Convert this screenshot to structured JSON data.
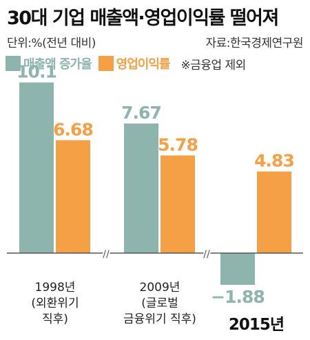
{
  "title": "30대 기업 매출액·영업이익률 떨어져",
  "unit": "단위:%(전년 대비)",
  "source": "자료:한국경제연구원",
  "note": "※금융업 제외",
  "colors": {
    "sales": "#8db5ae",
    "margin": "#f5a044",
    "axis": "#555555"
  },
  "chart_data": {
    "type": "bar",
    "categories": [
      [
        "1998년",
        "(외환위기",
        "직후)"
      ],
      [
        "2009년",
        "(글로벌",
        "금융위기 직후)"
      ],
      [
        "2015년"
      ]
    ],
    "series": [
      {
        "name": "매출액 증가율",
        "values": [
          10.1,
          7.67,
          -1.88
        ],
        "labels": [
          "10.1",
          "7.67",
          "−1.88"
        ]
      },
      {
        "name": "영업이익률",
        "values": [
          6.68,
          5.78,
          4.83
        ],
        "labels": [
          "6.68",
          "5.78",
          "4.83"
        ]
      }
    ],
    "ylim": [
      -2.6,
      10.8
    ],
    "axis_break_markers": [
      "//",
      "//"
    ]
  }
}
